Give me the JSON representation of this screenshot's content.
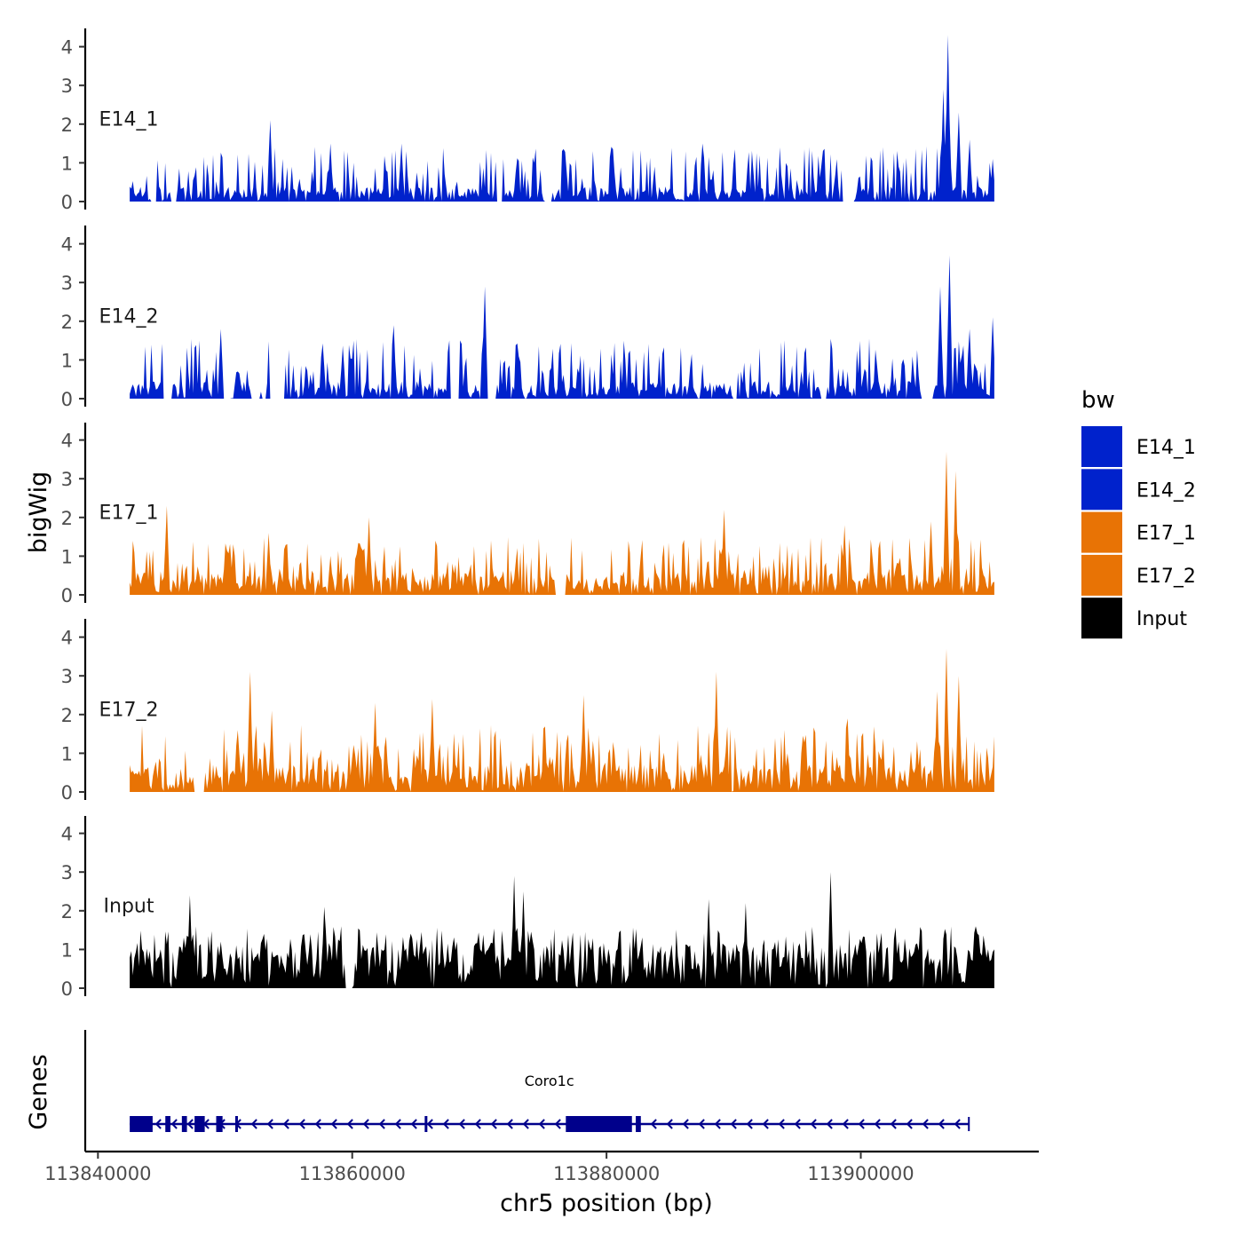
{
  "chart_data": {
    "type": "area",
    "title": "",
    "xlabel": "chr5 position (bp)",
    "ylabel": "bigWig",
    "genes_label": "Genes",
    "xlim": [
      113839000,
      113914000
    ],
    "data_range": [
      113842500,
      113910500
    ],
    "ylim": [
      0,
      4.5
    ],
    "y_ticks": [
      0,
      1,
      2,
      3,
      4
    ],
    "x_ticks": [
      113840000,
      113860000,
      113880000,
      113900000
    ],
    "x_tick_labels": [
      "113840000",
      "113860000",
      "113880000",
      "113900000"
    ],
    "legend": {
      "title": "bw",
      "placement": "right",
      "entries": [
        {
          "name": "E14_1",
          "color": "#0022CC"
        },
        {
          "name": "E14_2",
          "color": "#0022CC"
        },
        {
          "name": "E17_1",
          "color": "#E87305"
        },
        {
          "name": "E17_2",
          "color": "#E87305"
        },
        {
          "name": "Input",
          "color": "#000000"
        }
      ]
    },
    "series": [
      {
        "name": "E14_1",
        "color": "#0022CC",
        "peaks": [
          [
            113853500,
            2.1
          ],
          [
            113906900,
            4.3
          ],
          [
            113906500,
            2.9
          ],
          [
            113907700,
            2.3
          ],
          [
            113908500,
            1.6
          ],
          [
            113910400,
            1.1
          ],
          [
            113887500,
            1.5
          ],
          [
            113863900,
            1.5
          ],
          [
            113858300,
            1.5
          ]
        ]
      },
      {
        "name": "E14_2",
        "color": "#0022CC",
        "peaks": [
          [
            113870400,
            2.9
          ],
          [
            113907000,
            3.7
          ],
          [
            113906200,
            2.9
          ],
          [
            113908500,
            1.8
          ],
          [
            113910400,
            2.1
          ],
          [
            113863300,
            1.9
          ],
          [
            113849700,
            1.8
          ]
        ]
      },
      {
        "name": "E17_1",
        "color": "#E87305",
        "peaks": [
          [
            113845400,
            2.3
          ],
          [
            113861300,
            2.0
          ],
          [
            113889200,
            2.2
          ],
          [
            113906700,
            3.7
          ],
          [
            113907500,
            3.2
          ],
          [
            113905500,
            1.9
          ],
          [
            113898700,
            1.8
          ],
          [
            113853400,
            1.6
          ]
        ]
      },
      {
        "name": "E17_2",
        "color": "#E87305",
        "peaks": [
          [
            113852000,
            3.1
          ],
          [
            113888700,
            3.1
          ],
          [
            113906700,
            3.7
          ],
          [
            113906000,
            2.6
          ],
          [
            113907700,
            3.0
          ],
          [
            113878200,
            2.5
          ],
          [
            113866300,
            2.4
          ],
          [
            113899000,
            1.9
          ],
          [
            113861800,
            2.3
          ],
          [
            113853700,
            2.1
          ]
        ]
      },
      {
        "name": "Input",
        "color": "#000000",
        "peaks": [
          [
            113872700,
            2.9
          ],
          [
            113897600,
            3.0
          ],
          [
            113888000,
            2.3
          ],
          [
            113857800,
            2.1
          ],
          [
            113873500,
            2.5
          ],
          [
            113891000,
            2.2
          ],
          [
            113847200,
            2.4
          ],
          [
            113909000,
            1.6
          ]
        ]
      }
    ],
    "genes": [
      {
        "name": "Coro1c",
        "strand": "-",
        "start": 113842500,
        "end": 113908500,
        "exons": [
          [
            113842500,
            113844300
          ],
          [
            113845300,
            113845700
          ],
          [
            113846600,
            113847000
          ],
          [
            113847600,
            113848400
          ],
          [
            113849300,
            113849800
          ],
          [
            113850800,
            113851000
          ],
          [
            113865700,
            113865900
          ],
          [
            113876800,
            113882000
          ],
          [
            113882300,
            113882700
          ]
        ]
      }
    ]
  }
}
